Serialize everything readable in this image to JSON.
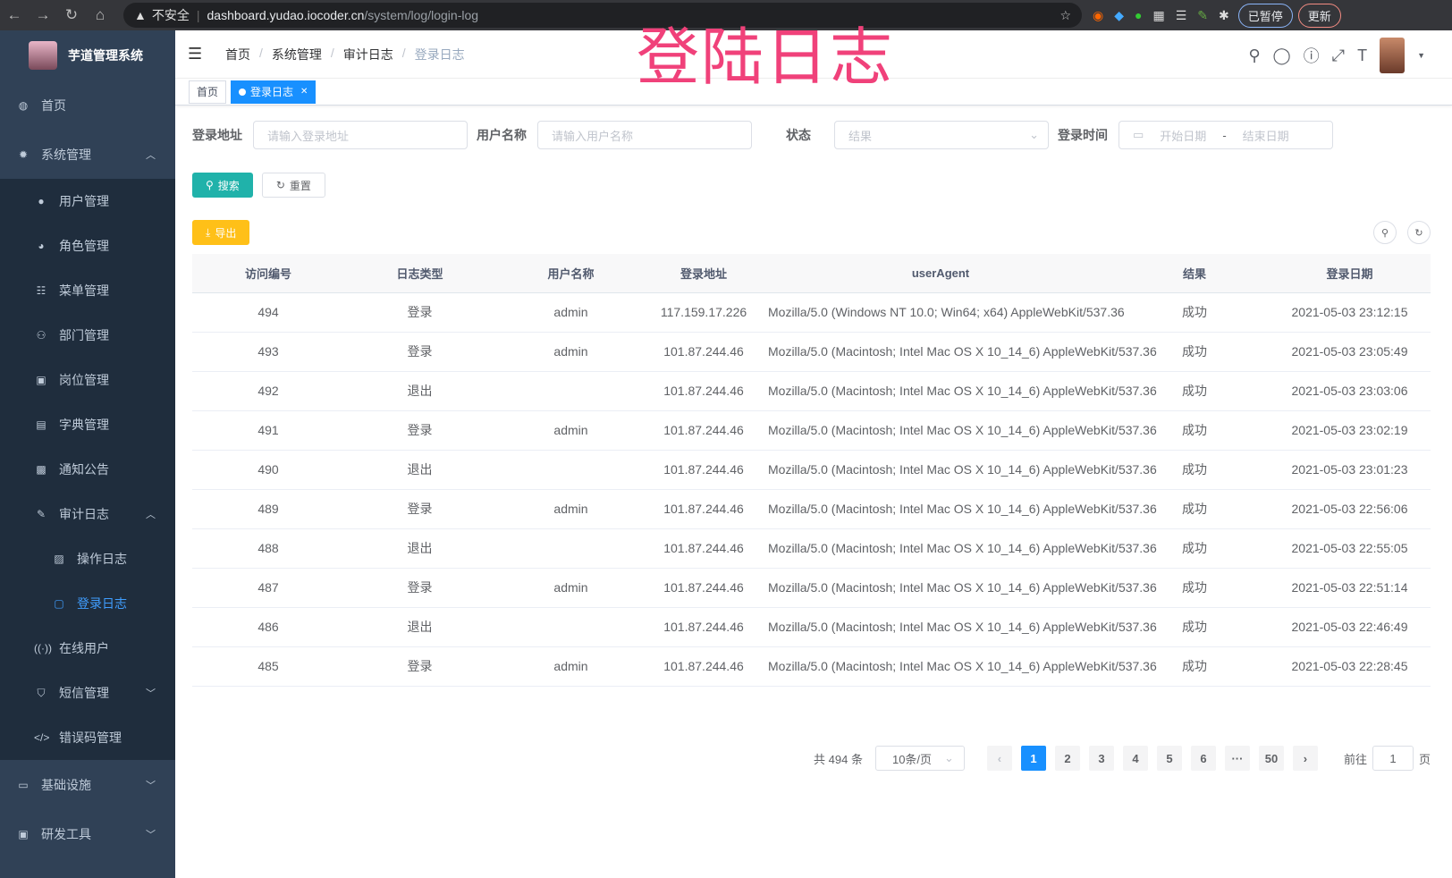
{
  "browser": {
    "insecure": "不安全",
    "host": "dashboard.yudao.iocoder.cn",
    "path": "/system/log/login-log",
    "profile": "已暂停",
    "update": "更新"
  },
  "app": {
    "title": "芋道管理系统"
  },
  "overlay_title": "登陆日志",
  "sidebar": {
    "items": [
      {
        "label": "首页",
        "icon": "dashboard-icon"
      },
      {
        "label": "系统管理",
        "icon": "gear-icon"
      },
      {
        "label": "用户管理",
        "icon": "user-icon"
      },
      {
        "label": "角色管理",
        "icon": "peoples-icon"
      },
      {
        "label": "菜单管理",
        "icon": "tree-table-icon"
      },
      {
        "label": "部门管理",
        "icon": "tree-icon"
      },
      {
        "label": "岗位管理",
        "icon": "post-icon"
      },
      {
        "label": "字典管理",
        "icon": "dict-icon"
      },
      {
        "label": "通知公告",
        "icon": "message-icon"
      },
      {
        "label": "审计日志",
        "icon": "log-icon"
      },
      {
        "label": "操作日志",
        "icon": "form-icon"
      },
      {
        "label": "登录日志",
        "icon": "logininfor-icon"
      },
      {
        "label": "在线用户",
        "icon": "online-icon"
      },
      {
        "label": "短信管理",
        "icon": "shield-icon"
      },
      {
        "label": "错误码管理",
        "icon": "code-icon"
      },
      {
        "label": "基础设施",
        "icon": "monitor-icon"
      },
      {
        "label": "研发工具",
        "icon": "tool-icon"
      }
    ]
  },
  "breadcrumb": [
    "首页",
    "系统管理",
    "审计日志",
    "登录日志"
  ],
  "tags": [
    {
      "label": "首页"
    },
    {
      "label": "登录日志"
    }
  ],
  "filters": {
    "address_label": "登录地址",
    "address_placeholder": "请输入登录地址",
    "user_label": "用户名称",
    "user_placeholder": "请输入用户名称",
    "status_label": "状态",
    "status_placeholder": "结果",
    "time_label": "登录时间",
    "start_placeholder": "开始日期",
    "end_placeholder": "结束日期",
    "sep": "-"
  },
  "buttons": {
    "search": "搜索",
    "reset": "重置",
    "export": "导出"
  },
  "table": {
    "headers": [
      "访问编号",
      "日志类型",
      "用户名称",
      "登录地址",
      "userAgent",
      "结果",
      "登录日期"
    ],
    "rows": [
      [
        "494",
        "登录",
        "admin",
        "117.159.17.226",
        "Mozilla/5.0 (Windows NT 10.0; Win64; x64) AppleWebKit/537.36",
        "成功",
        "2021-05-03 23:12:15"
      ],
      [
        "493",
        "登录",
        "admin",
        "101.87.244.46",
        "Mozilla/5.0 (Macintosh; Intel Mac OS X 10_14_6) AppleWebKit/537.36",
        "成功",
        "2021-05-03 23:05:49"
      ],
      [
        "492",
        "退出",
        "",
        "101.87.244.46",
        "Mozilla/5.0 (Macintosh; Intel Mac OS X 10_14_6) AppleWebKit/537.36",
        "成功",
        "2021-05-03 23:03:06"
      ],
      [
        "491",
        "登录",
        "admin",
        "101.87.244.46",
        "Mozilla/5.0 (Macintosh; Intel Mac OS X 10_14_6) AppleWebKit/537.36",
        "成功",
        "2021-05-03 23:02:19"
      ],
      [
        "490",
        "退出",
        "",
        "101.87.244.46",
        "Mozilla/5.0 (Macintosh; Intel Mac OS X 10_14_6) AppleWebKit/537.36",
        "成功",
        "2021-05-03 23:01:23"
      ],
      [
        "489",
        "登录",
        "admin",
        "101.87.244.46",
        "Mozilla/5.0 (Macintosh; Intel Mac OS X 10_14_6) AppleWebKit/537.36",
        "成功",
        "2021-05-03 22:56:06"
      ],
      [
        "488",
        "退出",
        "",
        "101.87.244.46",
        "Mozilla/5.0 (Macintosh; Intel Mac OS X 10_14_6) AppleWebKit/537.36",
        "成功",
        "2021-05-03 22:55:05"
      ],
      [
        "487",
        "登录",
        "admin",
        "101.87.244.46",
        "Mozilla/5.0 (Macintosh; Intel Mac OS X 10_14_6) AppleWebKit/537.36",
        "成功",
        "2021-05-03 22:51:14"
      ],
      [
        "486",
        "退出",
        "",
        "101.87.244.46",
        "Mozilla/5.0 (Macintosh; Intel Mac OS X 10_14_6) AppleWebKit/537.36",
        "成功",
        "2021-05-03 22:46:49"
      ],
      [
        "485",
        "登录",
        "admin",
        "101.87.244.46",
        "Mozilla/5.0 (Macintosh; Intel Mac OS X 10_14_6) AppleWebKit/537.36",
        "成功",
        "2021-05-03 22:28:45"
      ]
    ]
  },
  "pagination": {
    "total": "共 494 条",
    "page_size": "10条/页",
    "pages": [
      "1",
      "2",
      "3",
      "4",
      "5",
      "6",
      "···",
      "50"
    ],
    "current": "1",
    "goto_label": "前往",
    "goto_value": "1",
    "goto_suffix": "页"
  },
  "colors": {
    "sidebar": "#304156",
    "submenu": "#1f2d3d",
    "primary": "#1890ff",
    "search": "#20b2aa",
    "export": "#ffba00",
    "overlay": "#f0417a"
  }
}
